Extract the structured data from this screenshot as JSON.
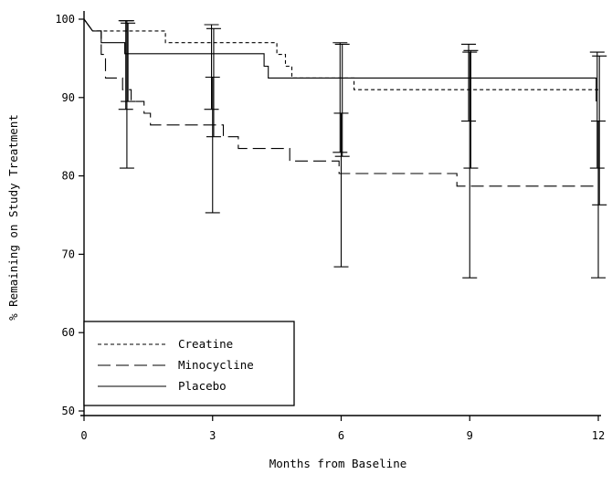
{
  "chart_data": {
    "type": "line",
    "xlabel": "Months from Baseline",
    "ylabel": "% Remaining on Study Treatment",
    "xlim": [
      0,
      12
    ],
    "ylim": [
      50,
      100
    ],
    "x_ticks": [
      0,
      3,
      6,
      9,
      12
    ],
    "y_ticks": [
      50,
      60,
      70,
      80,
      90,
      100
    ],
    "grid": false,
    "legend_position": "bottom-left",
    "series": [
      {
        "name": "Creatine",
        "style": "short-dash",
        "points": [
          [
            0,
            100
          ],
          [
            0.2,
            98.5
          ],
          [
            1.9,
            98.5
          ],
          [
            1.9,
            97
          ],
          [
            4.5,
            97
          ],
          [
            4.5,
            95.5
          ],
          [
            4.7,
            95.5
          ],
          [
            4.7,
            94
          ],
          [
            4.85,
            94
          ],
          [
            4.85,
            92.5
          ],
          [
            6.3,
            92.5
          ],
          [
            6.3,
            91
          ],
          [
            12,
            91
          ]
        ],
        "error_bars": [
          {
            "x": 1.0,
            "low": 88.5,
            "high": 99.8
          },
          {
            "x": 3.0,
            "low": 88.5,
            "high": 99.3
          },
          {
            "x": 6.0,
            "low": 83.0,
            "high": 97.0
          },
          {
            "x": 9.0,
            "low": 87.0,
            "high": 96.8
          },
          {
            "x": 12.0,
            "low": 81.0,
            "high": 95.8
          }
        ]
      },
      {
        "name": "Minocycline",
        "style": "long-dash",
        "points": [
          [
            0,
            100
          ],
          [
            0.2,
            98.5
          ],
          [
            0.4,
            98.5
          ],
          [
            0.4,
            95.5
          ],
          [
            0.5,
            95.5
          ],
          [
            0.5,
            92.5
          ],
          [
            0.9,
            92.5
          ],
          [
            0.9,
            91
          ],
          [
            1.1,
            91
          ],
          [
            1.1,
            89.5
          ],
          [
            1.4,
            89.5
          ],
          [
            1.4,
            88
          ],
          [
            1.55,
            88
          ],
          [
            1.55,
            86.5
          ],
          [
            3.25,
            86.5
          ],
          [
            3.25,
            85
          ],
          [
            3.6,
            85
          ],
          [
            3.6,
            83.5
          ],
          [
            4.8,
            83.5
          ],
          [
            4.8,
            81.9
          ],
          [
            5.95,
            81.9
          ],
          [
            5.95,
            80.3
          ],
          [
            8.7,
            80.3
          ],
          [
            8.7,
            78.7
          ],
          [
            12,
            78.7
          ]
        ],
        "error_bars": [
          {
            "x": 1.0,
            "low": 81.0,
            "high": 99.8
          },
          {
            "x": 3.0,
            "low": 75.3,
            "high": 92.6
          },
          {
            "x": 6.0,
            "low": 68.4,
            "high": 88.0
          },
          {
            "x": 9.0,
            "low": 67.0,
            "high": 95.8
          },
          {
            "x": 12.0,
            "low": 67.0,
            "high": 87.0
          }
        ]
      },
      {
        "name": "Placebo",
        "style": "solid",
        "points": [
          [
            0,
            100
          ],
          [
            0.2,
            98.5
          ],
          [
            0.4,
            98.5
          ],
          [
            0.4,
            97
          ],
          [
            0.95,
            97
          ],
          [
            0.95,
            95.6
          ],
          [
            4.2,
            95.6
          ],
          [
            4.2,
            94
          ],
          [
            4.3,
            94
          ],
          [
            4.3,
            92.5
          ],
          [
            11.95,
            92.5
          ],
          [
            11.95,
            89.5
          ]
        ],
        "error_bars": [
          {
            "x": 1.0,
            "low": 89.5,
            "high": 99.5
          },
          {
            "x": 3.0,
            "low": 85.0,
            "high": 98.8
          },
          {
            "x": 6.0,
            "low": 82.5,
            "high": 96.8
          },
          {
            "x": 9.0,
            "low": 81.0,
            "high": 96.0
          },
          {
            "x": 12.0,
            "low": 76.3,
            "high": 95.3
          }
        ]
      }
    ]
  }
}
